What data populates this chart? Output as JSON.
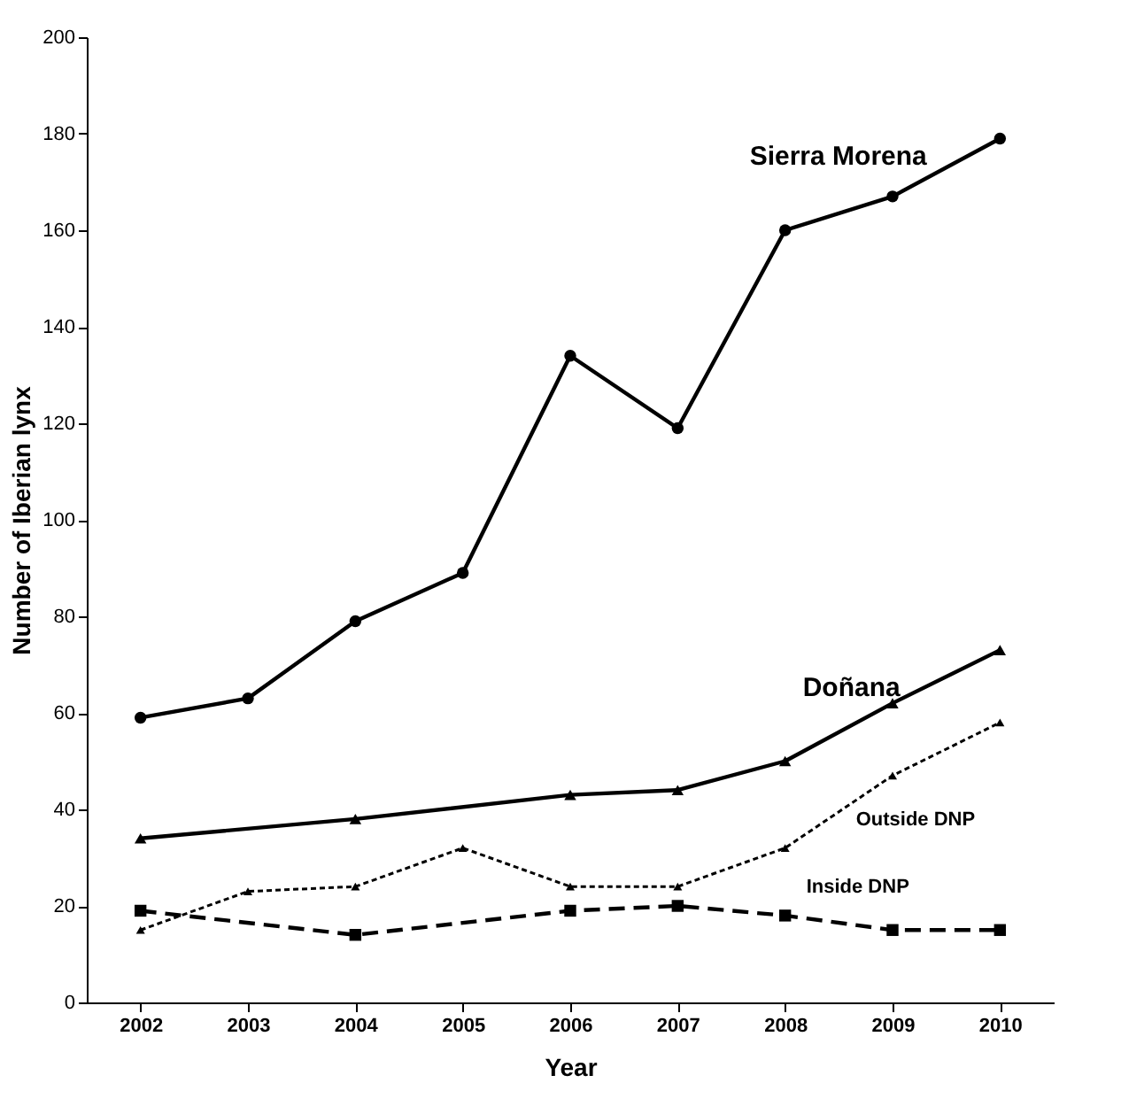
{
  "chart_data": {
    "type": "line",
    "xlabel": "Year",
    "ylabel": "Number of Iberian lynx",
    "xlim": [
      2001.5,
      2010.5
    ],
    "xticks": [
      2002,
      2003,
      2004,
      2005,
      2006,
      2007,
      2008,
      2009,
      2010
    ],
    "ylim": [
      0,
      200
    ],
    "yticks": [
      0,
      20,
      40,
      60,
      80,
      100,
      120,
      140,
      160,
      180,
      200
    ],
    "grid": false,
    "legend": false,
    "series": [
      {
        "name": "Sierra Morena",
        "color": "#000000",
        "marker": "circle",
        "line_style": "solid",
        "x": [
          2002,
          2003,
          2004,
          2005,
          2006,
          2007,
          2008,
          2009,
          2010
        ],
        "values": [
          59,
          63,
          79,
          89,
          134,
          119,
          160,
          167,
          179
        ]
      },
      {
        "name": "Doñana",
        "color": "#000000",
        "marker": "triangle",
        "line_style": "solid",
        "x": [
          2002,
          2004,
          2006,
          2007,
          2008,
          2009,
          2010
        ],
        "values": [
          34,
          38,
          43,
          44,
          50,
          62,
          73
        ]
      },
      {
        "name": "Outside DNP",
        "color": "#000000",
        "marker": "triangle",
        "line_style": "dotted",
        "x": [
          2002,
          2003,
          2004,
          2005,
          2006,
          2007,
          2008,
          2009,
          2010
        ],
        "values": [
          15,
          23,
          24,
          32,
          24,
          24,
          32,
          47,
          58
        ]
      },
      {
        "name": "Inside DNP",
        "color": "#000000",
        "marker": "square",
        "line_style": "dashed",
        "x": [
          2002,
          2004,
          2006,
          2007,
          2008,
          2009,
          2010
        ],
        "values": [
          19,
          14,
          19,
          20,
          18,
          15,
          15
        ]
      }
    ]
  }
}
